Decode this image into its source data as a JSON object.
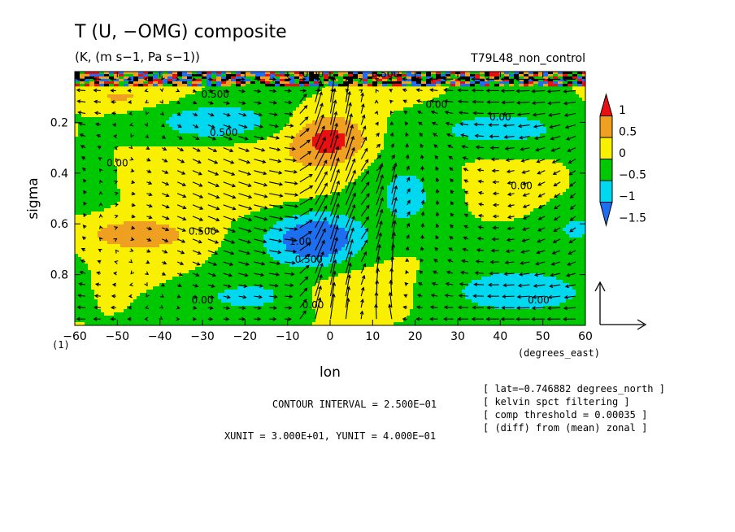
{
  "chart_data": {
    "type": "heatmap",
    "title": "T (U, −OMG) composite",
    "subtitle": "(K, (m s−1, Pa s−1))",
    "run_label": "T79L48_non_control",
    "xlabel": "lon",
    "x_unit_label": "(degrees_east)",
    "ylabel": "sigma",
    "corner_label": "(1)",
    "xlim": [
      -60,
      60
    ],
    "ylim": [
      0,
      1
    ],
    "y_inverted": true,
    "x_ticks": [
      -60,
      -50,
      -40,
      -30,
      -20,
      -10,
      0,
      10,
      20,
      30,
      40,
      50,
      60
    ],
    "x_tick_labels": [
      "−60",
      "−50",
      "−40",
      "−30",
      "−20",
      "−10",
      "0",
      "10",
      "20",
      "30",
      "40",
      "50",
      "60"
    ],
    "y_ticks": [
      0.2,
      0.4,
      0.6,
      0.8
    ],
    "y_tick_labels": [
      "0.2",
      "0.4",
      "0.6",
      "0.8"
    ],
    "colorbar": {
      "levels": [
        -1.5,
        -1,
        -0.5,
        0,
        0.5,
        1
      ],
      "labels": [
        "1",
        "0.5",
        "0",
        "−0.5",
        "−1",
        "−1.5"
      ],
      "colors": [
        "#1e6ff0",
        "#00d8f0",
        "#00c800",
        "#f8f000",
        "#f0a020",
        "#e81010"
      ]
    },
    "anomalies": [
      {
        "lon": 0,
        "sigma": 0.27,
        "amp": 1.2,
        "wlon": 9,
        "wsig": 0.1
      },
      {
        "lon": -3,
        "sigma": 0.66,
        "amp": -1.6,
        "wlon": 11,
        "wsig": 0.1
      },
      {
        "lon": -27,
        "sigma": 0.2,
        "amp": -1.0,
        "wlon": 14,
        "wsig": 0.07
      },
      {
        "lon": -45,
        "sigma": 0.64,
        "amp": 0.9,
        "wlon": 12,
        "wsig": 0.06
      },
      {
        "lon": 40,
        "sigma": 0.23,
        "amp": -0.75,
        "wlon": 18,
        "wsig": 0.08
      },
      {
        "lon": 45,
        "sigma": 0.87,
        "amp": -0.7,
        "wlon": 22,
        "wsig": 0.1
      },
      {
        "lon": -20,
        "sigma": 0.89,
        "amp": -0.55,
        "wlon": 18,
        "wsig": 0.08
      },
      {
        "lon": 5,
        "sigma": 0.88,
        "amp": 0.55,
        "wlon": 12,
        "wsig": 0.08
      },
      {
        "lon": 18,
        "sigma": 0.5,
        "amp": -0.6,
        "wlon": 8,
        "wsig": 0.15
      },
      {
        "lon": -58,
        "sigma": 0.42,
        "amp": -0.6,
        "wlon": 6,
        "wsig": 0.1
      },
      {
        "lon": 58,
        "sigma": 0.62,
        "amp": -0.6,
        "wlon": 7,
        "wsig": 0.08
      },
      {
        "lon": -30,
        "sigma": 0.4,
        "amp": 0.35,
        "wlon": 25,
        "wsig": 0.12
      },
      {
        "lon": -50,
        "sigma": 0.1,
        "amp": 0.5,
        "wlon": 10,
        "wsig": 0.04
      }
    ],
    "top_layer": {
      "sigma_max": 0.05,
      "colors": [
        "#e81010",
        "#1e6ff0",
        "#00c800",
        "#f0a020",
        "#000000"
      ]
    },
    "contour_labels": [
      {
        "text": "0.500",
        "lon": -27,
        "sigma": 0.09
      },
      {
        "text": "0.00",
        "lon": -4,
        "sigma": 0.01
      },
      {
        "text": "0.500",
        "lon": 13,
        "sigma": 0.01
      },
      {
        "text": "0.00",
        "lon": -50,
        "sigma": 0.36
      },
      {
        "text": "0.500",
        "lon": -25,
        "sigma": 0.24
      },
      {
        "text": "0.00",
        "lon": 25,
        "sigma": 0.13
      },
      {
        "text": "0.00",
        "lon": 40,
        "sigma": 0.18
      },
      {
        "text": "0.00",
        "lon": 45,
        "sigma": 0.45
      },
      {
        "text": "0.500",
        "lon": -30,
        "sigma": 0.63
      },
      {
        "text": "1.00",
        "lon": -7,
        "sigma": 0.67
      },
      {
        "text": "0.500",
        "lon": -5,
        "sigma": 0.74
      },
      {
        "text": "0.00",
        "lon": -30,
        "sigma": 0.9
      },
      {
        "text": "0.00",
        "lon": -4,
        "sigma": 0.92
      },
      {
        "text": "0.00",
        "lon": 49,
        "sigma": 0.9
      }
    ],
    "vector_reference": {
      "u_label": "XUNIT = 3.000E+01",
      "w_label": "YUNIT = 4.000E−01"
    },
    "contour_interval": "CONTOUR INTERVAL = 2.500E−01",
    "units_line": "XUNIT = 3.000E+01, YUNIT = 4.000E−01",
    "info_lines": [
      "[ lat=−0.746882 degrees_north ]",
      "[ kelvin spct filtering ]",
      "[ comp threshold = 0.00035 ]",
      "[ (diff) from (mean) zonal ]"
    ]
  }
}
